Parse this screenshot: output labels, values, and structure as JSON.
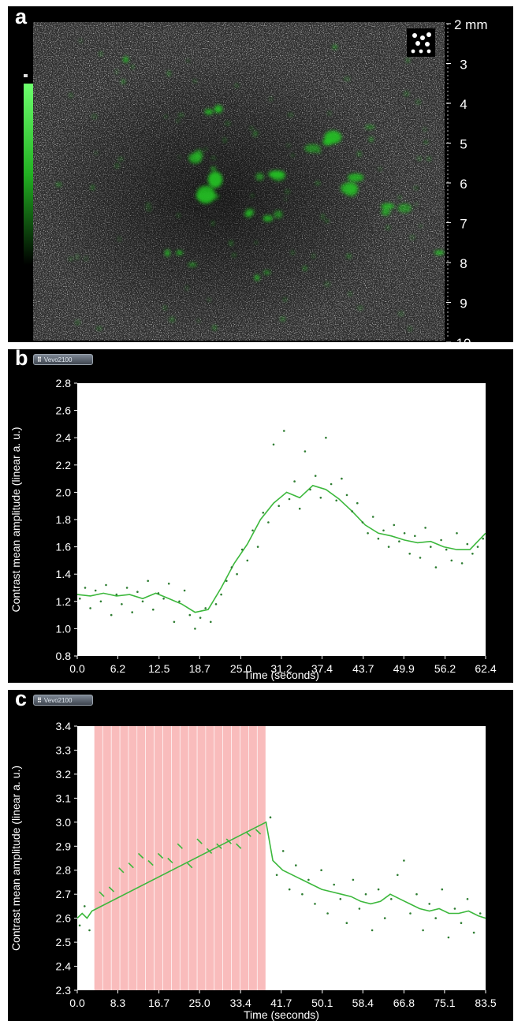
{
  "panel_a": {
    "letter": "a",
    "depth_scale": {
      "unit_label": "2 mm",
      "ticks": [
        "3",
        "4",
        "5",
        "6",
        "7",
        "8",
        "9",
        "10"
      ]
    },
    "colors": {
      "contrast_overlay": "#22c022",
      "bar_top": "#66ff66"
    }
  },
  "panel_b": {
    "letter": "b",
    "badge": "Vevo2100"
  },
  "panel_c": {
    "letter": "c",
    "badge": "Vevo2100"
  },
  "chart_data": [
    {
      "type": "scatter",
      "panel": "b",
      "xlabel": "Time (seconds)",
      "ylabel": "Contrast mean amplitude (linear a. u.)",
      "xlim": [
        0,
        62.4
      ],
      "ylim": [
        0.8,
        2.8
      ],
      "xticks": [
        "0.0",
        "6.2",
        "12.5",
        "18.7",
        "25.0",
        "31.2",
        "37.4",
        "43.7",
        "49.9",
        "56.2",
        "62.4"
      ],
      "yticks": [
        "0.8",
        "1.0",
        "1.2",
        "1.4",
        "1.6",
        "1.8",
        "2.0",
        "2.2",
        "2.4",
        "2.6",
        "2.8"
      ],
      "colors": {
        "line": "#3cb83c",
        "points": "#2e7d32",
        "plot_bg": "#ffffff"
      },
      "series": [
        {
          "kind": "line",
          "x": [
            0,
            2,
            4,
            6,
            8,
            10,
            12,
            14,
            16,
            18,
            20,
            22,
            24,
            26,
            28,
            30,
            32,
            34,
            36,
            38,
            40,
            42,
            44,
            46,
            48,
            50,
            52,
            54,
            56,
            58,
            60,
            62.4
          ],
          "y": [
            1.25,
            1.24,
            1.26,
            1.24,
            1.25,
            1.22,
            1.26,
            1.22,
            1.18,
            1.12,
            1.14,
            1.3,
            1.48,
            1.62,
            1.8,
            1.92,
            2.0,
            1.96,
            2.05,
            2.02,
            1.95,
            1.86,
            1.76,
            1.7,
            1.68,
            1.65,
            1.63,
            1.64,
            1.6,
            1.58,
            1.58,
            1.7
          ]
        },
        {
          "kind": "points",
          "x": [
            0.4,
            1.2,
            2.0,
            2.8,
            3.6,
            4.4,
            5.2,
            6.0,
            6.8,
            7.6,
            8.4,
            9.2,
            10.0,
            10.8,
            11.6,
            12.4,
            13.2,
            14.0,
            14.8,
            15.6,
            16.4,
            17.2,
            18.0,
            18.8,
            19.6,
            20.4,
            21.2,
            22.0,
            22.8,
            23.6,
            24.4,
            25.2,
            26.0,
            26.8,
            27.6,
            28.4,
            29.2,
            30.0,
            30.8,
            31.6,
            32.4,
            33.2,
            34.0,
            34.8,
            35.6,
            36.4,
            37.2,
            38.0,
            38.8,
            39.6,
            40.4,
            41.2,
            42.0,
            42.8,
            43.6,
            44.4,
            45.2,
            46.0,
            46.8,
            47.6,
            48.4,
            49.2,
            50.0,
            50.8,
            51.6,
            52.4,
            53.2,
            54.0,
            54.8,
            55.6,
            56.4,
            57.2,
            58.0,
            58.8,
            59.6,
            60.4,
            61.2,
            62.0
          ],
          "y": [
            1.22,
            1.3,
            1.15,
            1.28,
            1.2,
            1.32,
            1.1,
            1.25,
            1.18,
            1.3,
            1.12,
            1.27,
            1.2,
            1.35,
            1.14,
            1.26,
            1.22,
            1.33,
            1.05,
            1.2,
            1.28,
            1.1,
            1.0,
            1.08,
            1.15,
            1.05,
            1.18,
            1.25,
            1.35,
            1.45,
            1.4,
            1.58,
            1.5,
            1.72,
            1.6,
            1.85,
            1.78,
            2.35,
            1.9,
            2.45,
            1.95,
            2.08,
            1.88,
            2.3,
            2.02,
            2.12,
            1.96,
            2.4,
            2.06,
            1.94,
            2.1,
            1.98,
            1.86,
            1.92,
            1.78,
            1.7,
            1.82,
            1.66,
            1.72,
            1.6,
            1.76,
            1.64,
            1.7,
            1.55,
            1.68,
            1.52,
            1.74,
            1.6,
            1.45,
            1.65,
            1.58,
            1.5,
            1.7,
            1.48,
            1.62,
            1.55,
            1.6,
            1.66
          ]
        }
      ]
    },
    {
      "type": "scatter",
      "panel": "c",
      "xlabel": "Time (seconds)",
      "ylabel": "Contrast mean amplitude (linear a. u.)",
      "xlim": [
        0,
        83.5
      ],
      "ylim": [
        2.3,
        3.4
      ],
      "xticks": [
        "0.0",
        "8.3",
        "16.7",
        "25.0",
        "33.4",
        "41.7",
        "50.1",
        "58.4",
        "66.8",
        "75.1",
        "83.5"
      ],
      "yticks": [
        "2.3",
        "2.4",
        "2.5",
        "2.6",
        "2.7",
        "2.8",
        "2.9",
        "3.0",
        "3.1",
        "3.2",
        "3.3",
        "3.4"
      ],
      "colors": {
        "line": "#3cb83c",
        "points": "#2e7d32",
        "bands": "#f9bcbc",
        "plot_bg": "#ffffff"
      },
      "bands": {
        "start": 3.5,
        "end": 38.6,
        "count": 20,
        "width": 1.4
      },
      "series": [
        {
          "kind": "line",
          "x": [
            0,
            1,
            2,
            3,
            38.6,
            40,
            42,
            44,
            46,
            48,
            50,
            52,
            54,
            56,
            58,
            60,
            62,
            64,
            66,
            68,
            70,
            72,
            74,
            76,
            78,
            80,
            82,
            83.5
          ],
          "y": [
            2.6,
            2.62,
            2.6,
            2.63,
            3.0,
            2.84,
            2.8,
            2.78,
            2.76,
            2.74,
            2.72,
            2.71,
            2.7,
            2.69,
            2.67,
            2.66,
            2.67,
            2.7,
            2.68,
            2.66,
            2.64,
            2.63,
            2.64,
            2.62,
            2.62,
            2.63,
            2.61,
            2.6
          ]
        },
        {
          "kind": "segments",
          "x": [
            5,
            7,
            9,
            11,
            13,
            15,
            17,
            19,
            21,
            23,
            25,
            27,
            29,
            31,
            33,
            35,
            37
          ],
          "y": [
            2.7,
            2.72,
            2.8,
            2.82,
            2.86,
            2.83,
            2.86,
            2.84,
            2.9,
            2.82,
            2.92,
            2.88,
            2.9,
            2.92,
            2.9,
            2.95,
            2.96
          ]
        },
        {
          "kind": "points",
          "x": [
            0.5,
            1.5,
            2.5,
            39.5,
            40.8,
            42.1,
            43.4,
            44.7,
            46.0,
            47.3,
            48.6,
            49.9,
            51.2,
            52.5,
            53.8,
            55.1,
            56.4,
            57.7,
            59.0,
            60.3,
            61.6,
            62.9,
            64.2,
            65.5,
            66.8,
            68.1,
            69.4,
            70.7,
            72.0,
            73.3,
            74.6,
            75.9,
            77.2,
            78.5,
            79.8,
            81.1,
            82.4
          ],
          "y": [
            2.57,
            2.65,
            2.55,
            3.02,
            2.78,
            2.88,
            2.72,
            2.82,
            2.7,
            2.76,
            2.66,
            2.8,
            2.62,
            2.74,
            2.68,
            2.58,
            2.76,
            2.64,
            2.7,
            2.55,
            2.72,
            2.6,
            2.68,
            2.78,
            2.84,
            2.62,
            2.7,
            2.55,
            2.66,
            2.6,
            2.72,
            2.52,
            2.64,
            2.58,
            2.68,
            2.54,
            2.62
          ]
        }
      ]
    }
  ]
}
